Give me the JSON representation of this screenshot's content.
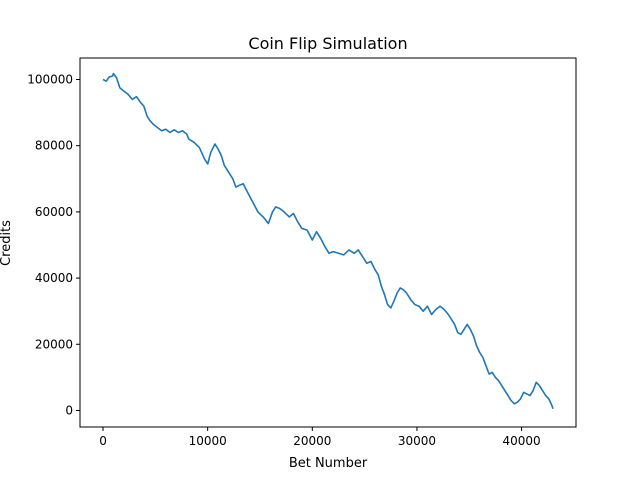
{
  "chart_data": {
    "type": "line",
    "title": "Coin Flip Simulation",
    "xlabel": "Bet Number",
    "ylabel": "Credits",
    "xlim": [
      -2200,
      45200
    ],
    "ylim": [
      -5000,
      106500
    ],
    "xticks": [
      0,
      10000,
      20000,
      30000,
      40000
    ],
    "yticks": [
      0,
      20000,
      40000,
      60000,
      80000,
      100000
    ],
    "xtick_labels": [
      "0",
      "10000",
      "20000",
      "30000",
      "40000"
    ],
    "ytick_labels": [
      "0",
      "20000",
      "40000",
      "60000",
      "80000",
      "100000"
    ],
    "grid": false,
    "legend": "none",
    "line_color": "#1f77b4",
    "series": [
      {
        "x": [
          0,
          300,
          600,
          900,
          1000,
          1300,
          1600,
          2000,
          2400,
          2800,
          3200,
          3600,
          3900,
          4200,
          4500,
          4800,
          5200,
          5600,
          6000,
          6400,
          6800,
          7200,
          7600,
          8000,
          8200,
          8700,
          9200,
          9700,
          10000,
          10300,
          10700,
          11000,
          11300,
          11600,
          12000,
          12400,
          12700,
          13000,
          13400,
          13800,
          14300,
          14800,
          15300,
          15800,
          16200,
          16500,
          16900,
          17300,
          17800,
          18200,
          18600,
          19000,
          19500,
          20000,
          20400,
          20800,
          21200,
          21600,
          22000,
          22500,
          23000,
          23500,
          24000,
          24400,
          24800,
          25200,
          25600,
          26000,
          26300,
          26600,
          26900,
          27200,
          27500,
          27800,
          28100,
          28400,
          28700,
          29000,
          29400,
          29800,
          30200,
          30600,
          31000,
          31400,
          31800,
          32200,
          32600,
          33000,
          33300,
          33600,
          33900,
          34200,
          34500,
          34800,
          35100,
          35400,
          35700,
          36000,
          36300,
          36600,
          36900,
          37200,
          37500,
          37800,
          38100,
          38400,
          38700,
          39000,
          39300,
          39600,
          39900,
          40200,
          40500,
          40800,
          41100,
          41400,
          41700,
          42000,
          42300,
          42600,
          42900,
          43000
        ],
        "y": [
          100000,
          99500,
          100800,
          101000,
          101800,
          100500,
          97500,
          96500,
          95500,
          94000,
          94800,
          93000,
          92000,
          89000,
          87500,
          86500,
          85500,
          84500,
          85000,
          84000,
          84800,
          84000,
          84500,
          83500,
          82000,
          81000,
          79500,
          76000,
          74500,
          78000,
          80500,
          79000,
          77000,
          74000,
          72000,
          70000,
          67500,
          68000,
          68500,
          66000,
          63000,
          60000,
          58500,
          56500,
          60000,
          61500,
          61000,
          60000,
          58500,
          59500,
          57000,
          55000,
          54500,
          51500,
          54000,
          52000,
          49500,
          47500,
          48000,
          47500,
          47000,
          48500,
          47500,
          48500,
          46500,
          44500,
          45000,
          42500,
          41000,
          37500,
          35000,
          32000,
          31000,
          33000,
          35500,
          37000,
          36500,
          35500,
          33500,
          32000,
          31500,
          30000,
          31500,
          29000,
          30500,
          31500,
          30500,
          29000,
          27500,
          26000,
          23500,
          23000,
          24500,
          26000,
          24500,
          22500,
          19500,
          17500,
          16000,
          13500,
          11000,
          11500,
          10000,
          9000,
          7500,
          6000,
          4500,
          3000,
          2000,
          2500,
          3500,
          5500,
          5000,
          4500,
          6000,
          8500,
          7500,
          6000,
          4500,
          3500,
          1500,
          500
        ]
      }
    ]
  }
}
